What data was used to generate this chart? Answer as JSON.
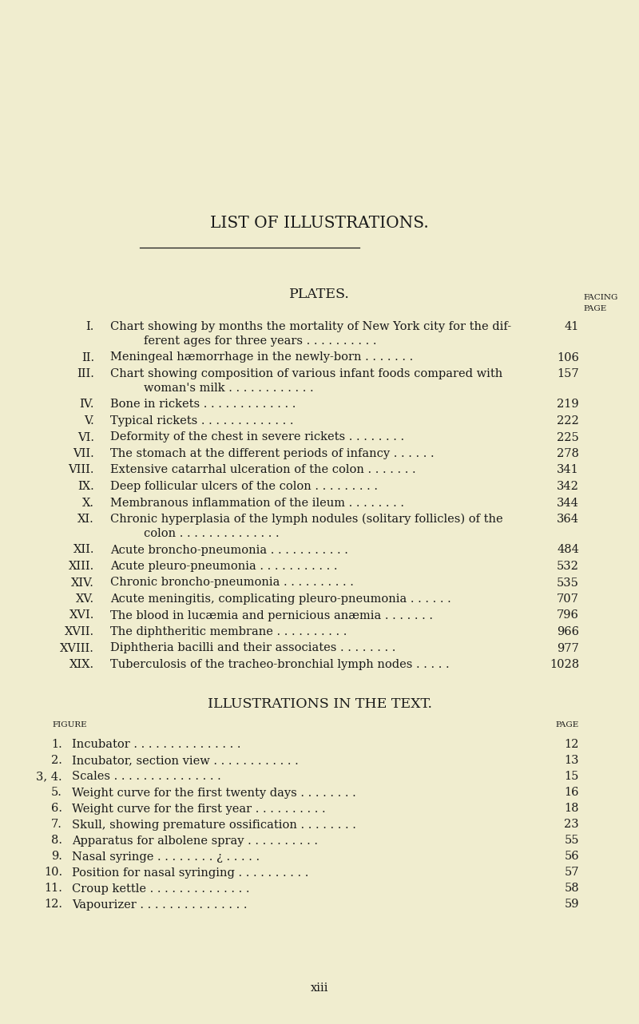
{
  "bg_color": "#f0edcf",
  "text_color": "#1a1a1a",
  "page_title": "LIST OF ILLUSTRATIONS.",
  "section1_title": "PLATES.",
  "plates": [
    [
      "I.",
      "Chart showing by months the mortality of New York city for the dif-",
      "ferent ages for three years . . . . . . . . . .",
      "41"
    ],
    [
      "II.",
      "Meningeal hæmorrhage in the newly-born . . . . . . .",
      "",
      "106"
    ],
    [
      "III.",
      "Chart showing composition of various infant foods compared with",
      "woman's milk . . . . . . . . . . . .",
      "157"
    ],
    [
      "IV.",
      "Bone in rickets . . . . . . . . . . . . .",
      "",
      "219"
    ],
    [
      "V.",
      "Typical rickets . . . . . . . . . . . . .",
      "",
      "222"
    ],
    [
      "VI.",
      "Deformity of the chest in severe rickets . . . . . . . .",
      "",
      "225"
    ],
    [
      "VII.",
      "The stomach at the different periods of infancy . . . . . .",
      "",
      "278"
    ],
    [
      "VIII.",
      "Extensive catarrhal ulceration of the colon . . . . . . .",
      "",
      "341"
    ],
    [
      "IX.",
      "Deep follicular ulcers of the colon . . . . . . . . .",
      "",
      "342"
    ],
    [
      "X.",
      "Membranous inflammation of the ileum . . . . . . . .",
      "",
      "344"
    ],
    [
      "XI.",
      "Chronic hyperplasia of the lymph nodules (solitary follicles) of the",
      "colon . . . . . . . . . . . . . .",
      "364"
    ],
    [
      "XII.",
      "Acute broncho-pneumonia . . . . . . . . . . .",
      "",
      "484"
    ],
    [
      "XIII.",
      "Acute pleuro-pneumonia . . . . . . . . . . .",
      "",
      "532"
    ],
    [
      "XIV.",
      "Chronic broncho-pneumonia . . . . . . . . . .",
      "",
      "535"
    ],
    [
      "XV.",
      "Acute meningitis, complicating pleuro-pneumonia . . . . . .",
      "",
      "707"
    ],
    [
      "XVI.",
      "The blood in lucæmia and pernicious anæmia . . . . . . .",
      "",
      "796"
    ],
    [
      "XVII.",
      "The diphtheritic membrane . . . . . . . . . .",
      "",
      "966"
    ],
    [
      "XVIII.",
      "Diphtheria bacilli and their associates . . . . . . . .",
      "",
      "977"
    ],
    [
      "XIX.",
      "Tuberculosis of the tracheo-bronchial lymph nodes . . . . .",
      "",
      "1028"
    ]
  ],
  "section2_title": "ILLUSTRATIONS IN THE TEXT.",
  "figures": [
    [
      "1.",
      "Incubator . . . . . . . . . . . . . . .",
      "12"
    ],
    [
      "2.",
      "Incubator, section view . . . . . . . . . . . .",
      "13"
    ],
    [
      "3, 4.",
      "Scales . . . . . . . . . . . . . . .",
      "15"
    ],
    [
      "5.",
      "Weight curve for the first twenty days . . . . . . . .",
      "16"
    ],
    [
      "6.",
      "Weight curve for the first year . . . . . . . . . .",
      "18"
    ],
    [
      "7.",
      "Skull, showing premature ossification . . . . . . . .",
      "23"
    ],
    [
      "8.",
      "Apparatus for albolene spray . . . . . . . . . .",
      "55"
    ],
    [
      "9.",
      "Nasal syringe . . . . . . . . ¿ . . . . .",
      "56"
    ],
    [
      "10.",
      "Position for nasal syringing . . . . . . . . . .",
      "57"
    ],
    [
      "11.",
      "Croup kettle . . . . . . . . . . . . . .",
      "58"
    ],
    [
      "12.",
      "Vapourizer . . . . . . . . . . . . . . .",
      "59"
    ]
  ],
  "footer": "xiii"
}
